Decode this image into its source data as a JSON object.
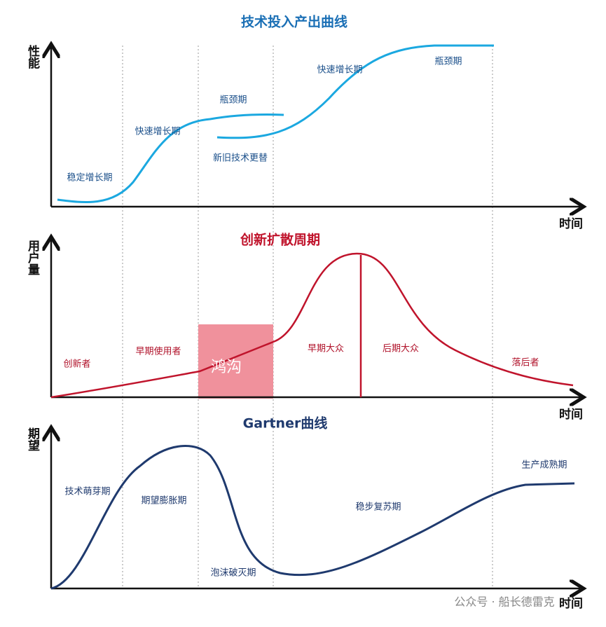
{
  "panels": [
    {
      "title": "技术投入产出曲线",
      "y_axis": "性能",
      "x_axis": "时间",
      "labels": [
        "稳定增长期",
        "快速增长期",
        "瓶颈期",
        "新旧技术更替",
        "快速增长期",
        "瓶颈期"
      ]
    },
    {
      "title": "创新扩散周期",
      "y_axis": "用户量",
      "x_axis": "时间",
      "labels": [
        "创新者",
        "早期使用者",
        "鸿沟",
        "早期大众",
        "后期大众",
        "落后者"
      ]
    },
    {
      "title": "Gartner曲线",
      "y_axis": "期望",
      "x_axis": "时间",
      "labels": [
        "技术萌芽期",
        "期望膨胀期",
        "泡沫破灭期",
        "稳步复苏期",
        "生产成熟期"
      ]
    }
  ],
  "watermark": "公众号 · 船长德雷克"
}
